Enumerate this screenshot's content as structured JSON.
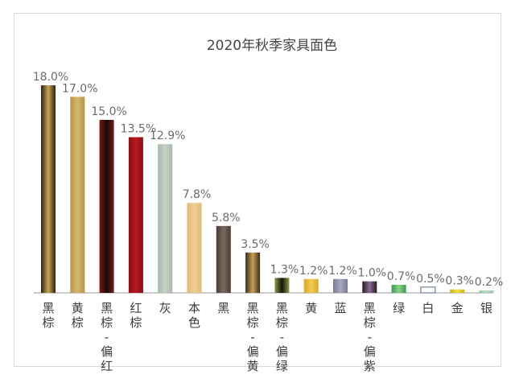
{
  "chart_data": {
    "type": "bar",
    "title": "2020年秋季家具面色",
    "xlabel": "",
    "ylabel": "",
    "ylim": [
      0,
      18
    ],
    "grid": false,
    "legend": "none",
    "categories": [
      "黑棕",
      "黄棕",
      "黑棕-偏红",
      "红棕",
      "灰",
      "本色",
      "黑",
      "黑棕-偏黄",
      "黑棕-偏绿",
      "黄",
      "蓝",
      "黑棕-偏紫",
      "绿",
      "白",
      "金",
      "银"
    ],
    "values": [
      18.0,
      17.0,
      15.0,
      13.5,
      12.9,
      7.8,
      5.8,
      3.5,
      1.3,
      1.2,
      1.2,
      1.0,
      0.7,
      0.5,
      0.3,
      0.2
    ],
    "value_labels": [
      "18.0%",
      "17.0%",
      "15.0%",
      "13.5%",
      "12.9%",
      "7.8%",
      "5.8%",
      "3.5%",
      "1.3%",
      "1.2%",
      "1.2%",
      "1.0%",
      "0.7%",
      "0.5%",
      "0.3%",
      "0.2%"
    ],
    "bar_colors": [
      [
        "#2a2214",
        "#c8a552"
      ],
      [
        "#b8944a",
        "#d4b86a"
      ],
      [
        "#7a1a14",
        "#1a0a08"
      ],
      [
        "#8a0e12",
        "#b81a1e"
      ],
      [
        "#a8b8ac",
        "#c8d2c6"
      ],
      [
        "#e0b872",
        "#f0d098"
      ],
      [
        "#4a3c34",
        "#7a6a60"
      ],
      [
        "#3a2c1c",
        "#c8a052"
      ],
      [
        "#8a9a4a",
        "#1a140c"
      ],
      [
        "#d8a82a",
        "#f0cc52"
      ],
      [
        "#7a7a94",
        "#a8aac0"
      ],
      [
        "#2a1a1a",
        "#8a6a9a"
      ],
      [
        "#3a9a4a",
        "#8ad08a"
      ],
      [
        "#f8f8f8",
        "#ffffff"
      ],
      [
        "#c8b018",
        "#f0e040"
      ],
      [
        "#8ac8a0",
        "#b8dcc4"
      ]
    ],
    "axis_color": "#999999"
  }
}
